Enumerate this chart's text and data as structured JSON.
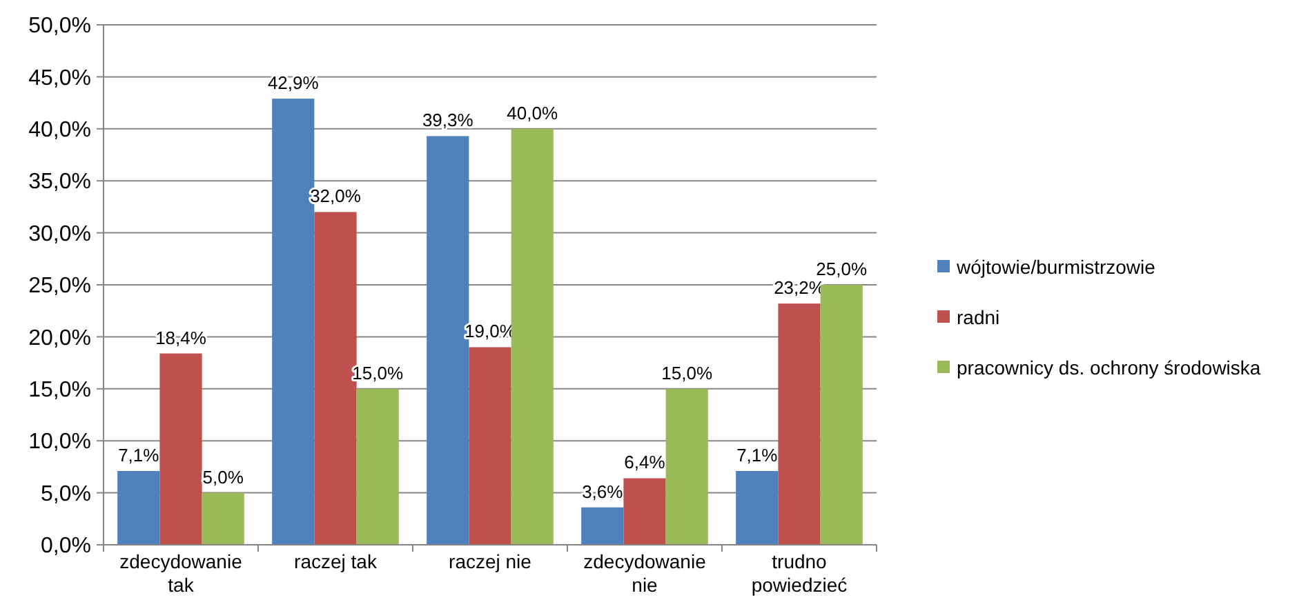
{
  "chart_data": {
    "type": "bar",
    "categories": [
      "zdecydowanie tak",
      "raczej tak",
      "raczej nie",
      "zdecydowanie nie",
      "trudno powiedzieć"
    ],
    "series": [
      {
        "name": "wójtowie/burmistrzowie",
        "color": "#4f81bd",
        "values": [
          7.1,
          42.9,
          39.3,
          3.6,
          7.1
        ],
        "value_labels": [
          "7,1%",
          "42,9%",
          "39,3%",
          "3,6%",
          "7,1%"
        ]
      },
      {
        "name": "radni",
        "color": "#c0504d",
        "values": [
          18.4,
          32.0,
          19.0,
          6.4,
          23.2
        ],
        "value_labels": [
          "18,4%",
          "32,0%",
          "19,0%",
          "6,4%",
          "23,2%"
        ]
      },
      {
        "name": "pracownicy ds. ochrony środowiska",
        "color": "#9bbb59",
        "values": [
          5.0,
          15.0,
          40.0,
          15.0,
          25.0
        ],
        "value_labels": [
          "5,0%",
          "15,0%",
          "40,0%",
          "15,0%",
          "25,0%"
        ]
      }
    ],
    "ylim": [
      0,
      50
    ],
    "yticks": [
      {
        "value": 0,
        "label": "0,0%"
      },
      {
        "value": 5,
        "label": "5,0%"
      },
      {
        "value": 10,
        "label": "10,0%"
      },
      {
        "value": 15,
        "label": "15,0%"
      },
      {
        "value": 20,
        "label": "20,0%"
      },
      {
        "value": 25,
        "label": "25,0%"
      },
      {
        "value": 30,
        "label": "30,0%"
      },
      {
        "value": 35,
        "label": "35,0%"
      },
      {
        "value": 40,
        "label": "40,0%"
      },
      {
        "value": 45,
        "label": "45,0%"
      },
      {
        "value": 50,
        "label": "50,0%"
      }
    ],
    "grid": "y",
    "legend": "right"
  }
}
